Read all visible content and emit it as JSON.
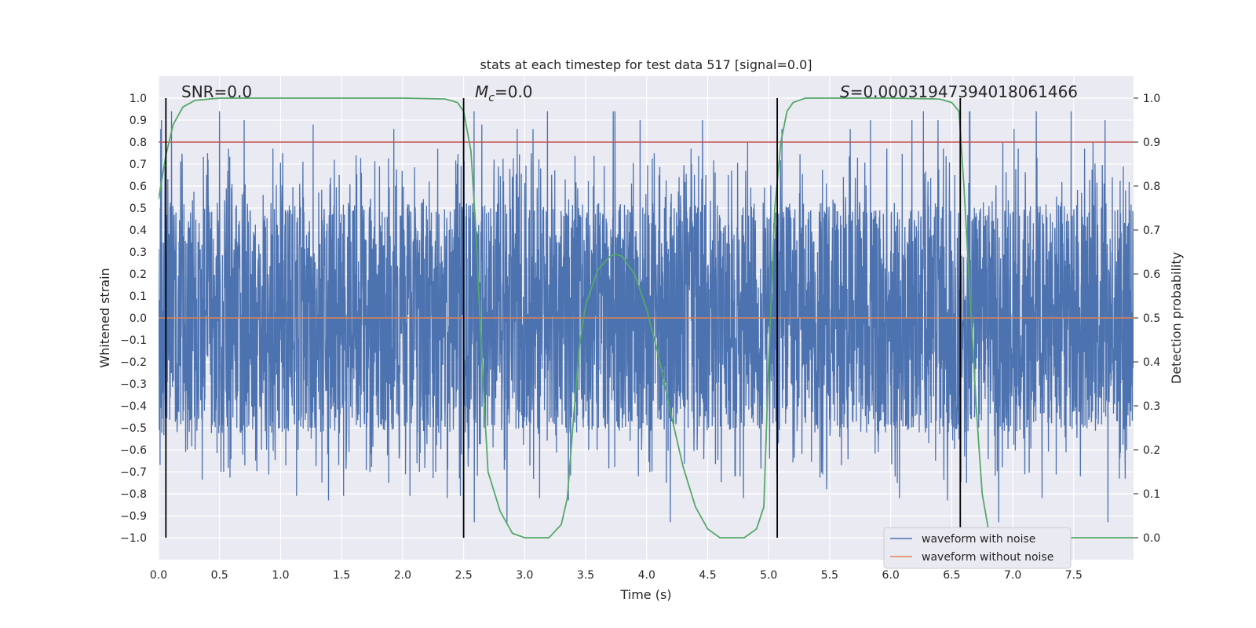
{
  "chart_data": {
    "type": "line",
    "title": "stats at each timestep for test data 517 [signal=0.0]",
    "xlabel": "Time (s)",
    "ylabel": "Whitened strain",
    "ylabel_right": "Detection probability",
    "xlim": [
      0.0,
      7.99
    ],
    "ylim": [
      -1.1,
      1.1
    ],
    "ylim_right": [
      -0.05,
      1.05
    ],
    "x_ticks": [
      0.0,
      0.5,
      1.0,
      1.5,
      2.0,
      2.5,
      3.0,
      3.5,
      4.0,
      4.5,
      5.0,
      5.5,
      6.0,
      6.5,
      7.0,
      7.5
    ],
    "x_tick_labels": [
      "0.0",
      "0.5",
      "1.0",
      "1.5",
      "2.0",
      "2.5",
      "3.0",
      "3.5",
      "4.0",
      "4.5",
      "5.0",
      "5.5",
      "6.0",
      "6.5",
      "7.0",
      "7.5"
    ],
    "y_ticks": [
      1.0,
      0.9,
      0.8,
      0.7,
      0.6,
      0.5,
      0.4,
      0.3,
      0.2,
      0.1,
      0.0,
      -0.1,
      -0.2,
      -0.3,
      -0.4,
      -0.5,
      -0.6,
      -0.7,
      -0.8,
      -0.9,
      -1.0
    ],
    "y_tick_labels": [
      "1.0",
      "0.9",
      "0.8",
      "0.7",
      "0.6",
      "0.5",
      "0.4",
      "0.3",
      "0.2",
      "0.1",
      "0.0",
      "−0.1",
      "−0.2",
      "−0.3",
      "−0.4",
      "−0.5",
      "−0.6",
      "−0.7",
      "−0.8",
      "−0.9",
      "−1.0"
    ],
    "y_right_ticks": [
      1.0,
      0.9,
      0.8,
      0.7,
      0.6,
      0.5,
      0.4,
      0.3,
      0.2,
      0.1,
      0.0
    ],
    "y_right_tick_labels": [
      "1.0",
      "0.9",
      "0.8",
      "0.7",
      "0.6",
      "0.5",
      "0.4",
      "0.3",
      "0.2",
      "0.1",
      "0.0"
    ],
    "annotations": {
      "snr": "SNR=0.0",
      "mc_symbol": "M",
      "mc_subscript": "c",
      "mc_value": "=0.0",
      "s_symbol": "S",
      "s_value": "=0.00031947394018061466"
    },
    "threshold_right": 0.9,
    "vlines": [
      0.06,
      2.5,
      5.07,
      6.57
    ],
    "series": [
      {
        "name": "waveform with noise",
        "color": "#4c72b0",
        "style": "dense noise, mostly within [-0.55, 0.55] with spikes near ±1.0",
        "samples": [
          0.9,
          -0.93,
          0.4,
          -0.5,
          0.77,
          -0.72,
          0.65,
          -0.6,
          0.94,
          -0.83,
          0.86,
          -0.82,
          0.94,
          -0.81,
          0.88,
          -0.7,
          0.8,
          -0.75,
          0.9,
          -0.78
        ]
      },
      {
        "name": "waveform without noise",
        "color": "#dd8452",
        "values_constant": 0.0
      },
      {
        "name": "detection probability",
        "color": "#55a868",
        "axis": "right",
        "x": [
          0.0,
          0.06,
          0.12,
          0.2,
          0.3,
          0.5,
          1.0,
          2.0,
          2.35,
          2.45,
          2.5,
          2.56,
          2.6,
          2.65,
          2.7,
          2.8,
          2.9,
          3.0,
          3.1,
          3.2,
          3.3,
          3.35,
          3.4,
          3.45,
          3.5,
          3.6,
          3.7,
          3.75,
          3.8,
          3.9,
          4.0,
          4.1,
          4.2,
          4.3,
          4.4,
          4.5,
          4.6,
          4.7,
          4.8,
          4.9,
          4.96,
          5.0,
          5.05,
          5.1,
          5.15,
          5.2,
          5.3,
          5.5,
          6.0,
          6.4,
          6.5,
          6.56,
          6.6,
          6.65,
          6.7,
          6.75,
          6.8,
          6.9,
          7.0,
          7.5,
          7.99
        ],
        "y": [
          0.77,
          0.87,
          0.94,
          0.98,
          0.995,
          1.0,
          1.0,
          1.0,
          0.998,
          0.99,
          0.97,
          0.88,
          0.7,
          0.4,
          0.15,
          0.06,
          0.01,
          0.0,
          0.0,
          0.0,
          0.03,
          0.09,
          0.27,
          0.44,
          0.53,
          0.61,
          0.64,
          0.645,
          0.64,
          0.6,
          0.52,
          0.41,
          0.28,
          0.16,
          0.07,
          0.02,
          0.0,
          0.0,
          0.0,
          0.02,
          0.07,
          0.4,
          0.75,
          0.9,
          0.97,
          0.99,
          1.0,
          1.0,
          1.0,
          0.998,
          0.99,
          0.97,
          0.8,
          0.55,
          0.3,
          0.1,
          0.02,
          0.0,
          0.0,
          0.0,
          0.0
        ]
      },
      {
        "name": "threshold",
        "color": "#c44e52",
        "axis": "right",
        "values_constant": 0.9
      }
    ],
    "legend": {
      "placement": "lower-right",
      "entries": [
        {
          "label": "waveform with noise",
          "color": "#4c72b0"
        },
        {
          "label": "waveform without noise",
          "color": "#dd8452"
        }
      ]
    },
    "grid": true,
    "background": "#eaeaf2"
  }
}
